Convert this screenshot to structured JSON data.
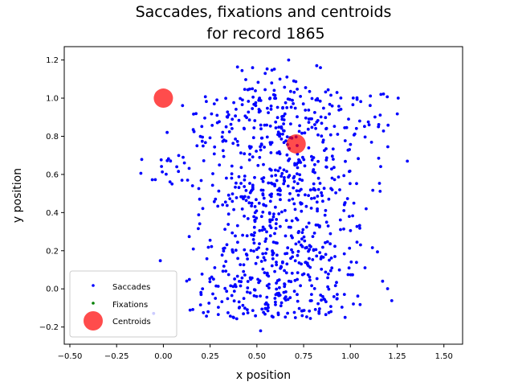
{
  "chart_data": {
    "type": "scatter",
    "title": [
      "Saccades, fixations and centroids",
      "for record 1865"
    ],
    "xlabel": "x position",
    "ylabel": "y position",
    "xlim": [
      -0.53,
      1.6
    ],
    "ylim": [
      -0.29,
      1.27
    ],
    "xticks": [
      -0.5,
      -0.25,
      0.0,
      0.25,
      0.5,
      0.75,
      1.0,
      1.25,
      1.5
    ],
    "xtick_labels": [
      "−0.50",
      "−0.25",
      "0.00",
      "0.25",
      "0.50",
      "0.75",
      "1.00",
      "1.25",
      "1.50"
    ],
    "yticks": [
      -0.2,
      0.0,
      0.2,
      0.4,
      0.6,
      0.8,
      1.0,
      1.2
    ],
    "ytick_labels": [
      "−0.2",
      "0.0",
      "0.2",
      "0.4",
      "0.6",
      "0.8",
      "1.0",
      "1.2"
    ],
    "grid": false,
    "legend_position": "lower-left",
    "series": [
      {
        "name": "Saccades",
        "color": "#0000ff",
        "marker": "dot",
        "clusters": [
          {
            "x_range": [
              0.22,
              0.96
            ],
            "y_range": [
              -0.16,
              0.18
            ],
            "count": 260,
            "seed": 11
          },
          {
            "x_range": [
              0.3,
              0.97
            ],
            "y_range": [
              0.18,
              0.62
            ],
            "count": 320,
            "seed": 23
          },
          {
            "x_range": [
              0.25,
              1.05
            ],
            "y_range": [
              0.62,
              1.05
            ],
            "count": 300,
            "seed": 37
          },
          {
            "x_range": [
              -0.1,
              0.12
            ],
            "y_range": [
              0.54,
              0.7
            ],
            "count": 20,
            "seed": 41
          },
          {
            "x_range": [
              0.48,
              0.84
            ],
            "y_range": [
              1.05,
              1.2
            ],
            "count": 16,
            "seed": 53
          }
        ],
        "points": [
          [
            0.52,
            -0.22
          ],
          [
            0.02,
            0.82
          ],
          [
            0.99,
            0.89
          ],
          [
            1.05,
            0.88
          ],
          [
            1.1,
            0.86
          ],
          [
            1.15,
            0.85
          ],
          [
            0.18,
            0.75
          ],
          [
            0.67,
            1.2
          ],
          [
            0.82,
            1.17
          ],
          [
            0.84,
            1.16
          ]
        ]
      },
      {
        "name": "Fixations",
        "color": "#008000",
        "marker": "dot",
        "points": []
      },
      {
        "name": "Centroids",
        "color": "#ff0000",
        "marker": "large-circle",
        "opacity": 0.7,
        "points": [
          [
            0.0,
            1.0
          ],
          [
            0.71,
            0.76
          ]
        ]
      }
    ]
  }
}
